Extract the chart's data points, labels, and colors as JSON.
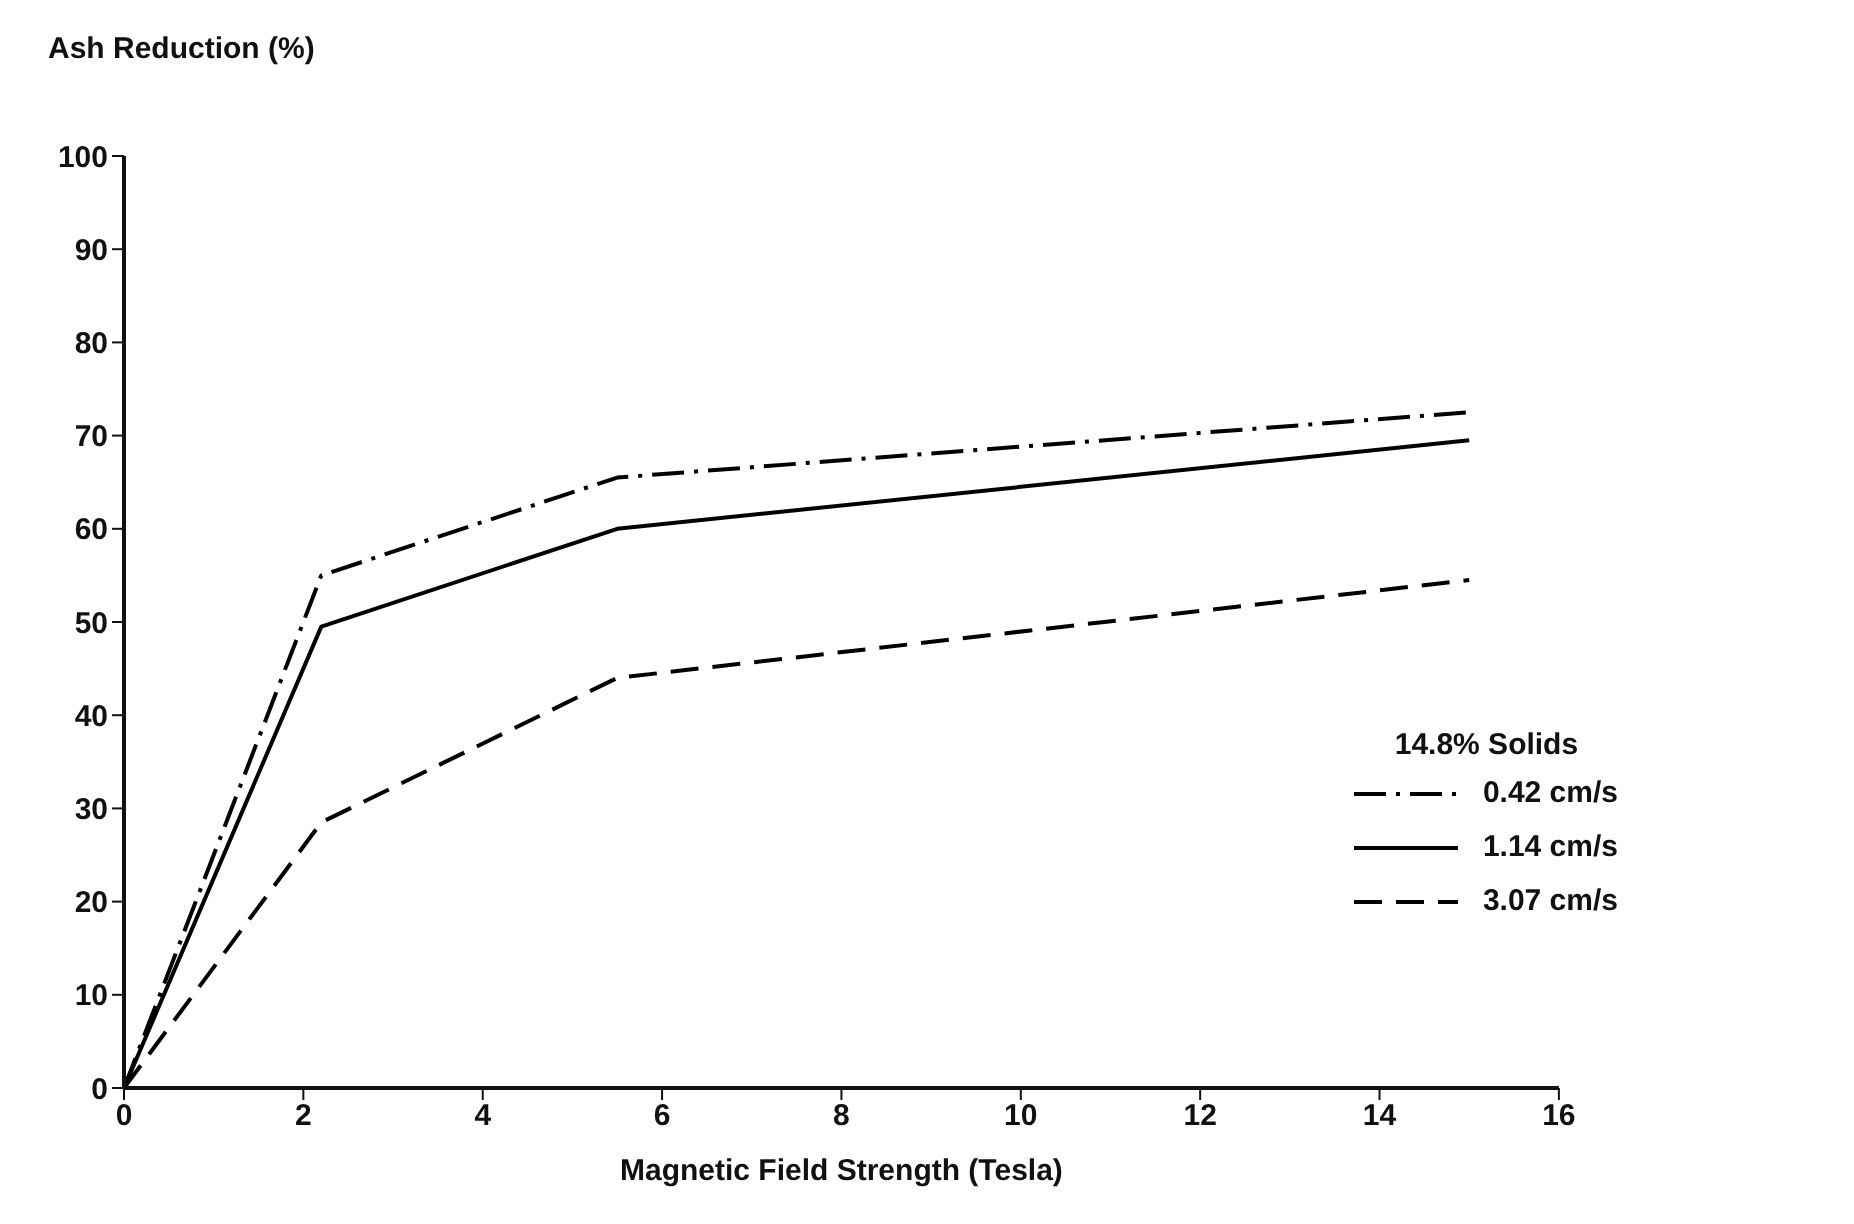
{
  "chart_data": {
    "type": "line",
    "xlabel": "Magnetic Field Strength (Tesla)",
    "ylabel": "Ash Reduction (%)",
    "legend_title": "14.8% Solids",
    "legend": "bottom right",
    "grid": false,
    "marker": "none",
    "x": [
      0,
      2.2,
      5.5,
      15
    ],
    "series": [
      {
        "name": "0.42 cm/s",
        "color": "#000000",
        "line_style": "dashdot",
        "values": [
          0,
          55,
          65.5,
          72.5
        ]
      },
      {
        "name": "1.14 cm/s",
        "color": "#000000",
        "line_style": "solid",
        "values": [
          0,
          49.5,
          60,
          69.5
        ]
      },
      {
        "name": "3.07 cm/s",
        "color": "#000000",
        "line_style": "dashed",
        "values": [
          0,
          28.5,
          44,
          54.5
        ]
      }
    ],
    "xlim": [
      0,
      16
    ],
    "xticks": [
      0,
      2,
      4,
      6,
      8,
      10,
      12,
      14,
      16
    ],
    "ylim": [
      0,
      100
    ],
    "yticks": [
      0,
      10,
      20,
      30,
      40,
      50,
      60,
      70,
      80,
      90,
      100
    ]
  }
}
